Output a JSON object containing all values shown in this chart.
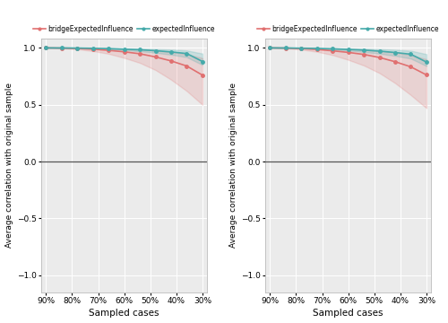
{
  "x_labels": [
    "90%",
    "80%",
    "70%",
    "60%",
    "50%",
    "40%",
    "30%"
  ],
  "x_values": [
    0,
    1,
    2,
    3,
    4,
    5,
    6,
    7,
    8,
    9,
    10
  ],
  "x_ticks_pos": [
    0,
    1.667,
    3.333,
    5.0,
    6.667,
    8.333,
    10
  ],
  "left_bridge_mean": [
    1.0,
    0.998,
    0.995,
    0.988,
    0.978,
    0.965,
    0.948,
    0.92,
    0.885,
    0.84,
    0.76
  ],
  "left_bridge_low": [
    0.999,
    0.996,
    0.988,
    0.972,
    0.948,
    0.912,
    0.868,
    0.805,
    0.72,
    0.62,
    0.5
  ],
  "left_bridge_high": [
    1.0,
    1.0,
    0.999,
    0.998,
    0.996,
    0.993,
    0.988,
    0.978,
    0.965,
    0.945,
    0.91
  ],
  "left_expected_mean": [
    1.0,
    0.999,
    0.998,
    0.996,
    0.993,
    0.988,
    0.983,
    0.975,
    0.964,
    0.95,
    0.88
  ],
  "left_expected_low": [
    0.999,
    0.998,
    0.996,
    0.993,
    0.988,
    0.98,
    0.97,
    0.957,
    0.94,
    0.918,
    0.85
  ],
  "left_expected_high": [
    1.0,
    1.0,
    1.0,
    0.999,
    0.998,
    0.996,
    0.994,
    0.99,
    0.985,
    0.977,
    0.95
  ],
  "right_bridge_mean": [
    1.0,
    0.998,
    0.994,
    0.986,
    0.974,
    0.96,
    0.942,
    0.915,
    0.878,
    0.833,
    0.762
  ],
  "right_bridge_low": [
    0.999,
    0.995,
    0.985,
    0.966,
    0.937,
    0.895,
    0.845,
    0.778,
    0.69,
    0.585,
    0.47
  ],
  "right_bridge_high": [
    1.0,
    1.0,
    0.999,
    0.998,
    0.996,
    0.992,
    0.986,
    0.975,
    0.96,
    0.938,
    0.9
  ],
  "right_expected_mean": [
    1.0,
    0.999,
    0.997,
    0.995,
    0.991,
    0.986,
    0.98,
    0.971,
    0.959,
    0.944,
    0.875
  ],
  "right_expected_low": [
    0.999,
    0.998,
    0.995,
    0.991,
    0.985,
    0.976,
    0.964,
    0.949,
    0.93,
    0.906,
    0.84
  ],
  "right_expected_high": [
    1.0,
    1.0,
    1.0,
    0.999,
    0.998,
    0.995,
    0.993,
    0.989,
    0.983,
    0.975,
    0.945
  ],
  "bridge_color": "#E07070",
  "expected_color": "#45AAAA",
  "bridge_fill_alpha": 0.2,
  "expected_fill_alpha": 0.2,
  "ylabel": "Average correlation with original sample",
  "xlabel": "Sampled cases",
  "legend_bridge": "bridgeExpectedInfluence",
  "legend_expected": "expectedInfluence",
  "ylim": [
    -1.15,
    1.08
  ],
  "yticks": [
    -1.0,
    -0.5,
    0.0,
    0.5,
    1.0
  ],
  "background_color": "#FFFFFF",
  "panel_background": "#EBEBEB",
  "grid_color": "#FFFFFF",
  "line_width": 1.2,
  "marker": "o",
  "marker_size": 2.5
}
